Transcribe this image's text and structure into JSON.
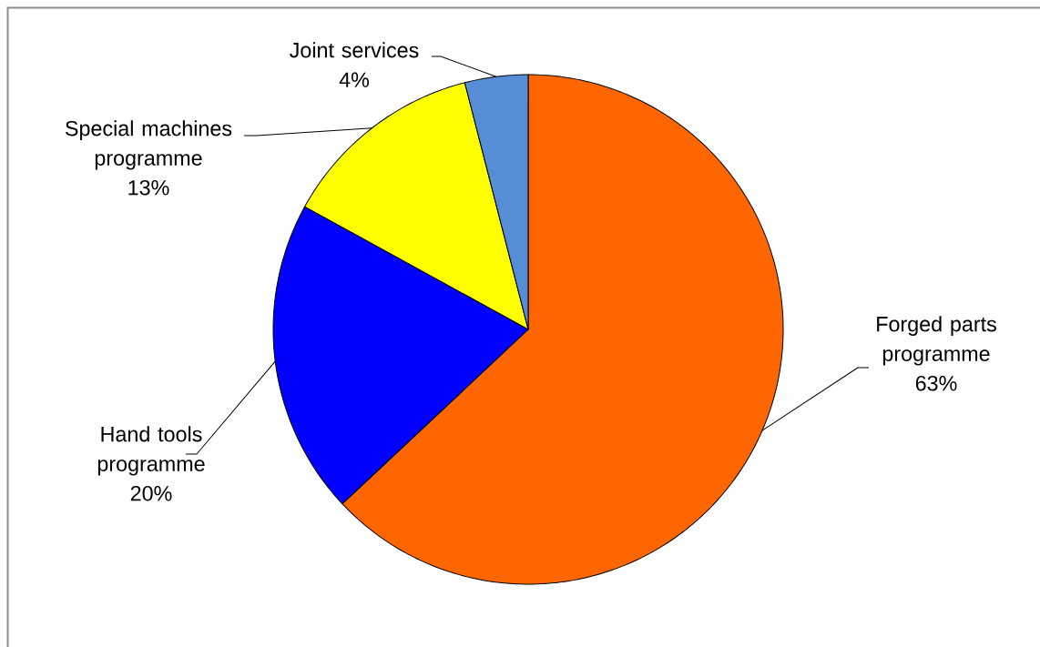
{
  "chart_data": {
    "type": "pie",
    "categories": [
      "Forged parts programme",
      "Hand tools programme",
      "Special machines programme",
      "Joint services"
    ],
    "values": [
      63,
      20,
      13,
      4
    ],
    "colors": [
      "#ff6600",
      "#0000ff",
      "#ffff00",
      "#558ed5"
    ],
    "value_labels": [
      "63%",
      "20%",
      "13%",
      "4%"
    ]
  }
}
